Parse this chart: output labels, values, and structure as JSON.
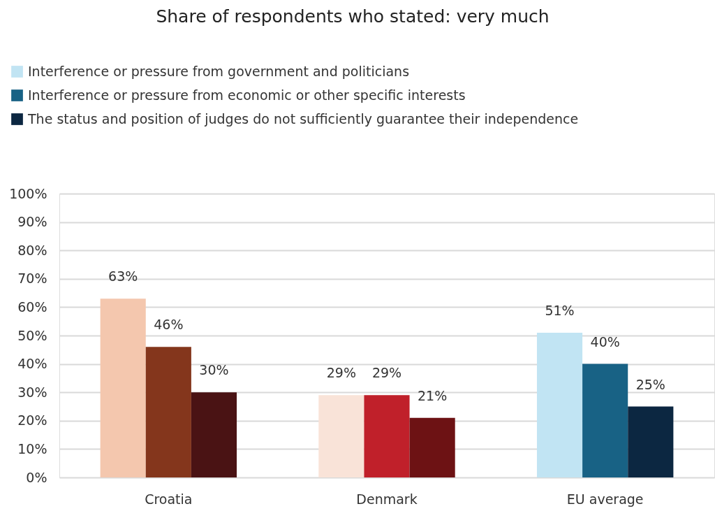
{
  "chart_data": {
    "type": "bar",
    "title": "Share of respondents who stated: very much",
    "categories": [
      "Croatia",
      "Denmark",
      "EU average"
    ],
    "series": [
      {
        "name": "Interference or pressure from government and politicians",
        "color": "#c1e4f3",
        "colors": [
          "#f4c7ae",
          "#f9e3d8",
          "#c1e4f3"
        ],
        "values": [
          63,
          29,
          51
        ],
        "value_labels": [
          "63%",
          "29%",
          "51%"
        ]
      },
      {
        "name": "Interference or pressure from economic or other specific interests",
        "color": "#186285",
        "colors": [
          "#84361c",
          "#c0202a",
          "#186285"
        ],
        "values": [
          46,
          29,
          40
        ],
        "value_labels": [
          "46%",
          "29%",
          "40%"
        ]
      },
      {
        "name": "The status and position of judges do not sufficiently guarantee their independence",
        "color": "#0c2741",
        "colors": [
          "#4a1314",
          "#6d1214",
          "#0c2741"
        ],
        "values": [
          30,
          21,
          25
        ],
        "value_labels": [
          "30%",
          "21%",
          "25%"
        ]
      }
    ],
    "ylim": [
      0,
      100
    ],
    "yticks": [
      {
        "value": 0,
        "label": "0%"
      },
      {
        "value": 10,
        "label": "10%"
      },
      {
        "value": 20,
        "label": "20%"
      },
      {
        "value": 30,
        "label": "30%"
      },
      {
        "value": 40,
        "label": "40%"
      },
      {
        "value": 50,
        "label": "50%"
      },
      {
        "value": 60,
        "label": "60%"
      },
      {
        "value": 70,
        "label": "70%"
      },
      {
        "value": 80,
        "label": "80%"
      },
      {
        "value": 90,
        "label": "90%"
      },
      {
        "value": 100,
        "label": "100%"
      }
    ],
    "grid": "y",
    "legend": "top left"
  }
}
